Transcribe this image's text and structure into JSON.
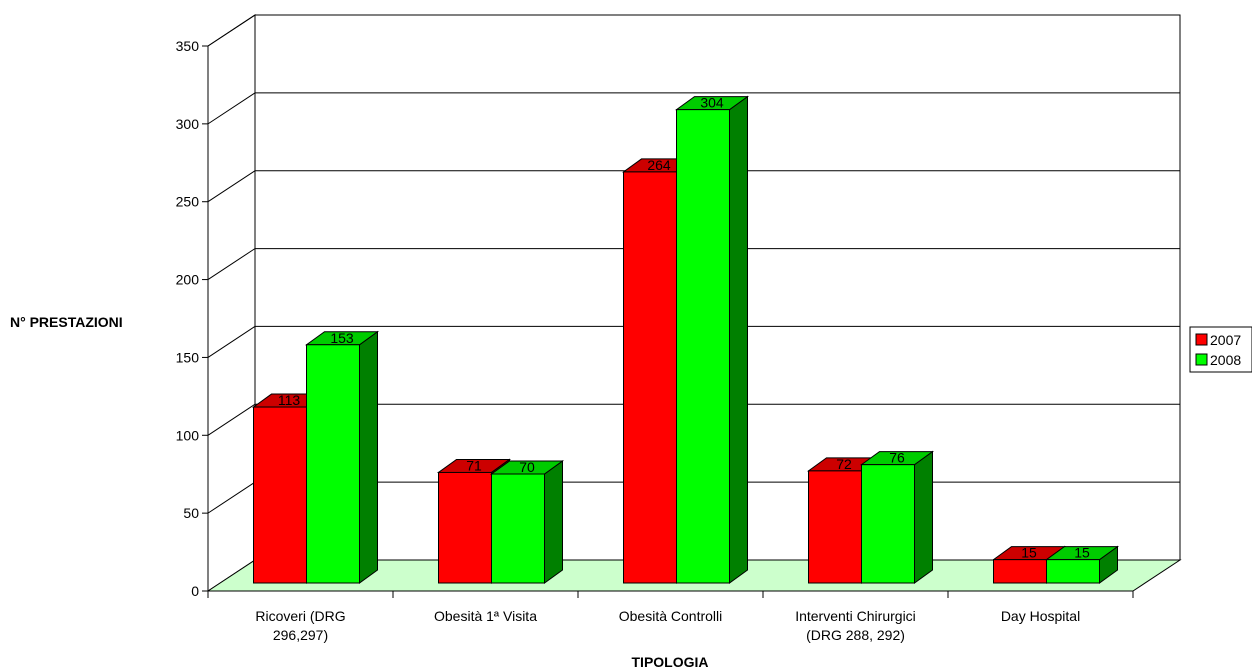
{
  "chart_data": {
    "type": "bar",
    "style": "3d-clustered-column",
    "title": "",
    "xlabel": "TIPOLOGIA",
    "ylabel": "N° PRESTAZIONI",
    "categories": [
      [
        "Ricoveri (DRG",
        "296,297)"
      ],
      [
        "Obesità 1ª Visita"
      ],
      [
        "Obesità Controlli"
      ],
      [
        "Interventi Chirurgici",
        "(DRG 288, 292)"
      ],
      [
        "Day Hospital"
      ]
    ],
    "series": [
      {
        "name": "2007",
        "values": [
          113,
          71,
          264,
          72,
          15
        ],
        "color": "#ff0000",
        "side_color": "#990000",
        "top_color": "#cc0000"
      },
      {
        "name": "2008",
        "values": [
          153,
          70,
          304,
          76,
          15
        ],
        "color": "#00ff00",
        "side_color": "#008000",
        "top_color": "#00cc00"
      }
    ],
    "ylim": [
      0,
      350
    ],
    "yticks": [
      0,
      50,
      100,
      150,
      200,
      250,
      300,
      350
    ],
    "grid": true,
    "floor_color": "#ccffcc",
    "legend": "right"
  }
}
